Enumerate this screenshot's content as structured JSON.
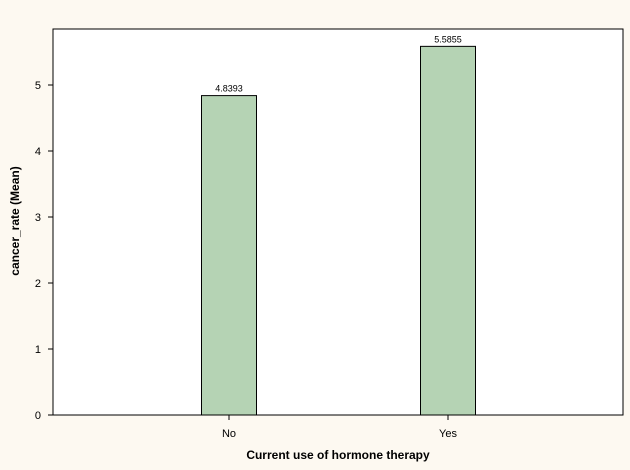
{
  "colors": {
    "background": "#fdf9f1",
    "plot_background": "#ffffff",
    "bar_fill": "#b5d3b4",
    "bar_stroke": "#000000",
    "axis": "#000000"
  },
  "chart_data": {
    "type": "bar",
    "categories": [
      "No",
      "Yes"
    ],
    "values": [
      4.8393,
      5.5855
    ],
    "value_labels": [
      "4.8393",
      "5.5855"
    ],
    "xlabel": "Current use of hormone therapy",
    "ylabel": "cancer_rate (Mean)",
    "ylim": [
      0,
      5.8
    ],
    "yticks": [
      0,
      1,
      2,
      3,
      4,
      5
    ],
    "ytick_labels": [
      "0",
      "1",
      "2",
      "3",
      "4",
      "5"
    ],
    "grid": false,
    "legend": "none"
  }
}
